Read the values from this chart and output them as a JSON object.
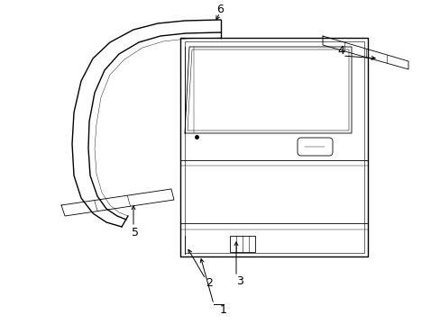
{
  "bg_color": "#ffffff",
  "line_color": "#000000",
  "lw_main": 1.0,
  "lw_thin": 0.6,
  "label_fontsize": 9,
  "figsize": [
    4.89,
    3.6
  ],
  "dpi": 100
}
